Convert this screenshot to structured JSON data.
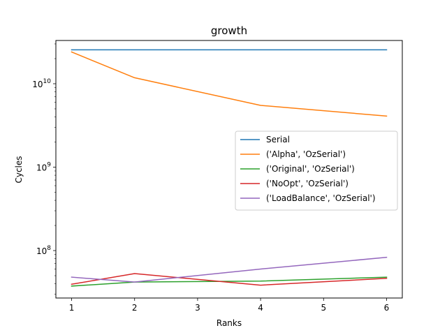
{
  "chart_data": {
    "type": "line",
    "title": "growth",
    "xlabel": "Ranks",
    "ylabel": "Cycles",
    "yscale": "log",
    "xlim": [
      0.75,
      6.25
    ],
    "ylim": [
      27000000,
      33000000000
    ],
    "xticks": [
      1,
      2,
      3,
      4,
      5,
      6
    ],
    "xtick_labels": [
      "1",
      "2",
      "3",
      "4",
      "5",
      "6"
    ],
    "yticks": [
      100000000,
      1000000000,
      10000000000
    ],
    "ytick_labels": [
      {
        "base": "10",
        "exp": "8"
      },
      {
        "base": "10",
        "exp": "9"
      },
      {
        "base": "10",
        "exp": "10"
      }
    ],
    "grid": false,
    "legend_position": "center-right",
    "x": [
      1,
      2,
      4,
      6
    ],
    "series": [
      {
        "name": "Serial",
        "color": "#1f77b4",
        "values": [
          25500000000,
          25500000000,
          25500000000,
          25500000000
        ]
      },
      {
        "name": "('Alpha', 'OzSerial')",
        "color": "#ff7f0e",
        "values": [
          24000000000,
          11800000000,
          5500000000,
          4100000000
        ]
      },
      {
        "name": "('Original', 'OzSerial')",
        "color": "#2ca02c",
        "values": [
          37500000,
          42000000,
          43000000,
          48000000
        ]
      },
      {
        "name": "('NoOpt', 'OzSerial')",
        "color": "#d62728",
        "values": [
          39500000,
          53000000,
          38500000,
          46500000
        ]
      },
      {
        "name": "('LoadBalance', 'OzSerial')",
        "color": "#9467bd",
        "values": [
          48000000,
          42000000,
          60000000,
          83000000
        ]
      }
    ]
  }
}
